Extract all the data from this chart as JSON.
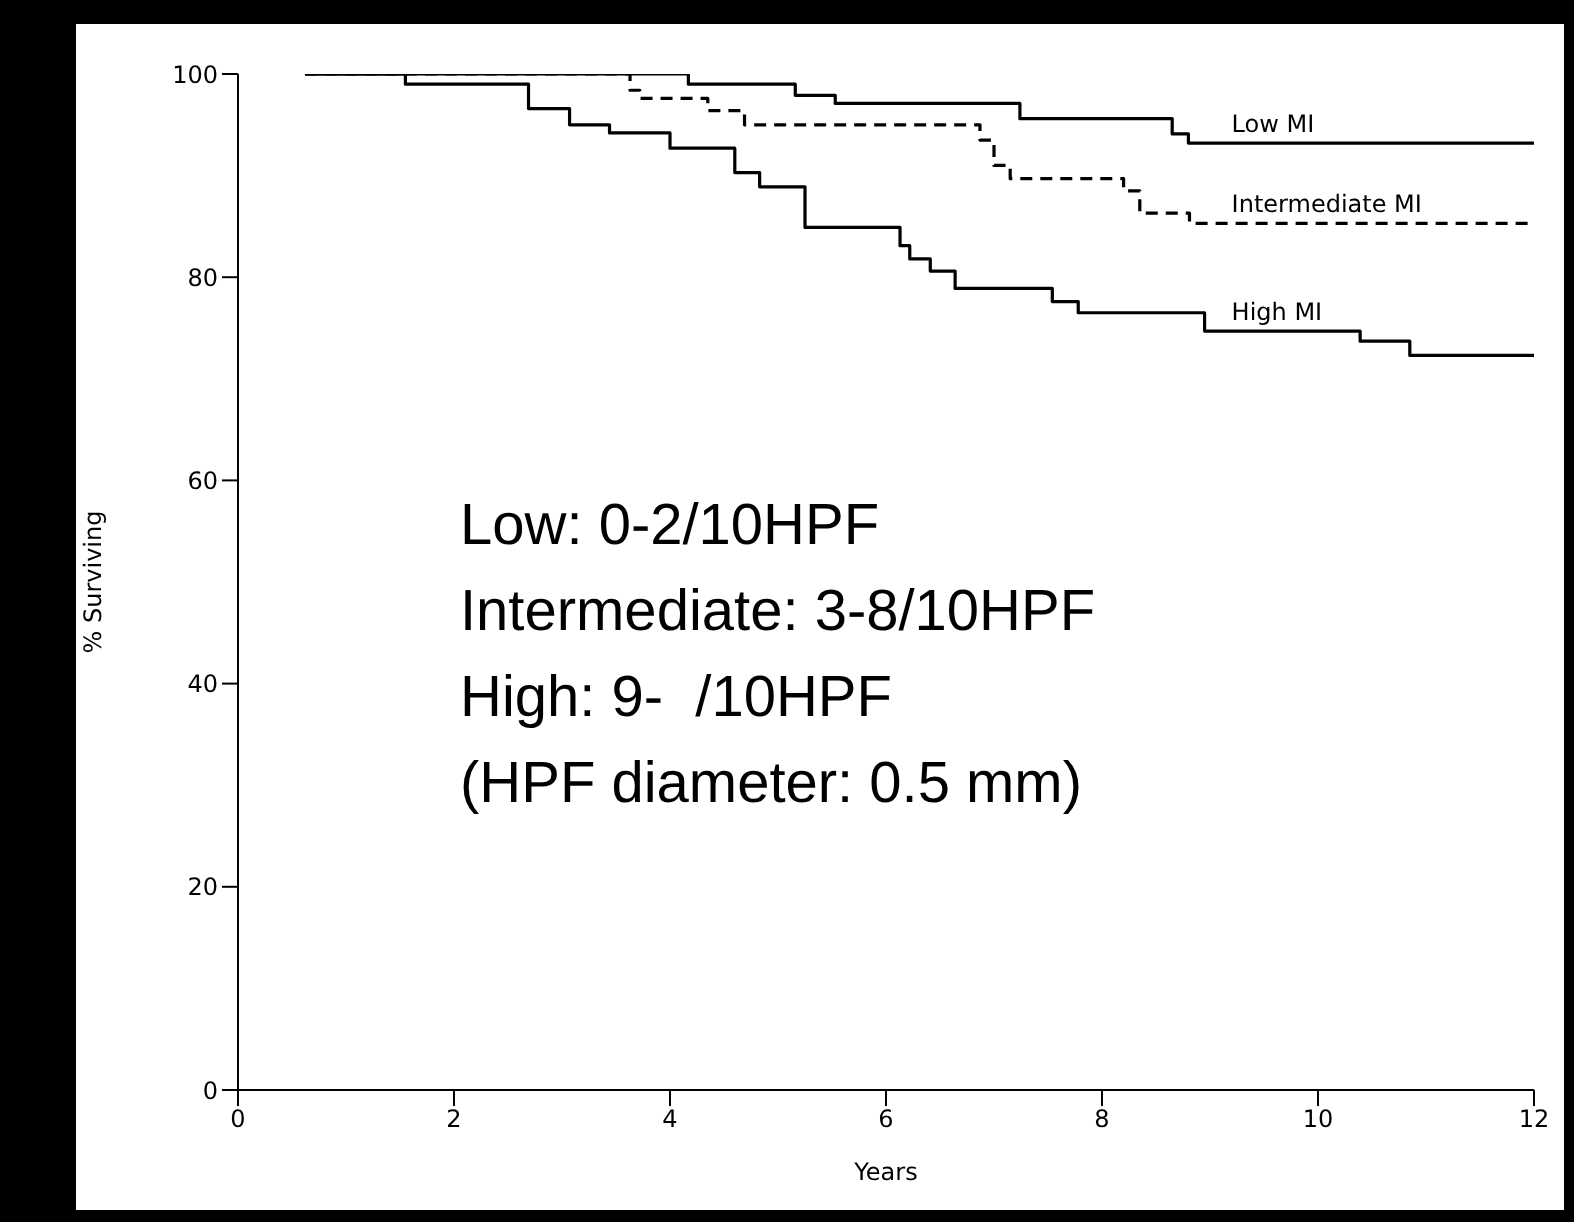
{
  "chart_data": {
    "type": "step",
    "xlabel": "Years",
    "ylabel": "% Surviving",
    "xlim": [
      0,
      12
    ],
    "xticks": [
      0,
      2,
      4,
      6,
      8,
      10,
      12
    ],
    "ylim": [
      0,
      100
    ],
    "yticks": [
      0,
      20,
      40,
      60,
      80,
      100
    ],
    "grid": false,
    "legend": false,
    "marker": "none",
    "series": [
      {
        "name": "Low MI",
        "color": "#000000",
        "line_style": "solid",
        "x": [
          0.62,
          4.17,
          5.16,
          5.53,
          7.24,
          8.65,
          8.8,
          12
        ],
        "values": [
          100,
          99.0,
          97.9,
          97.1,
          95.6,
          94.1,
          93.2,
          93.2
        ]
      },
      {
        "name": "Intermediate MI",
        "color": "#000000",
        "line_style": "dashed",
        "x": [
          0.62,
          3.63,
          3.72,
          4.35,
          4.69,
          6.87,
          7.0,
          7.15,
          8.2,
          8.35,
          8.81,
          12
        ],
        "values": [
          100,
          98.4,
          97.6,
          96.4,
          95.0,
          93.5,
          91.0,
          89.7,
          88.5,
          86.3,
          85.3,
          85.3
        ]
      },
      {
        "name": "High MI",
        "color": "#000000",
        "line_style": "solid",
        "x": [
          0.62,
          1.55,
          2.69,
          3.07,
          3.44,
          4.0,
          4.6,
          4.83,
          5.25,
          6.13,
          6.22,
          6.41,
          6.64,
          7.54,
          7.78,
          8.95,
          10.39,
          10.85,
          12
        ],
        "values": [
          100,
          99.0,
          96.6,
          95.0,
          94.2,
          92.7,
          90.3,
          88.9,
          84.9,
          83.1,
          81.8,
          80.6,
          78.9,
          77.6,
          76.5,
          74.7,
          73.7,
          72.3,
          72.3
        ]
      }
    ],
    "annotations": [
      "Low: 0-2/10HPF",
      "Intermediate: 3-8/10HPF",
      "High: 9-  /10HPF",
      "(HPF diameter: 0.5 mm)"
    ]
  }
}
